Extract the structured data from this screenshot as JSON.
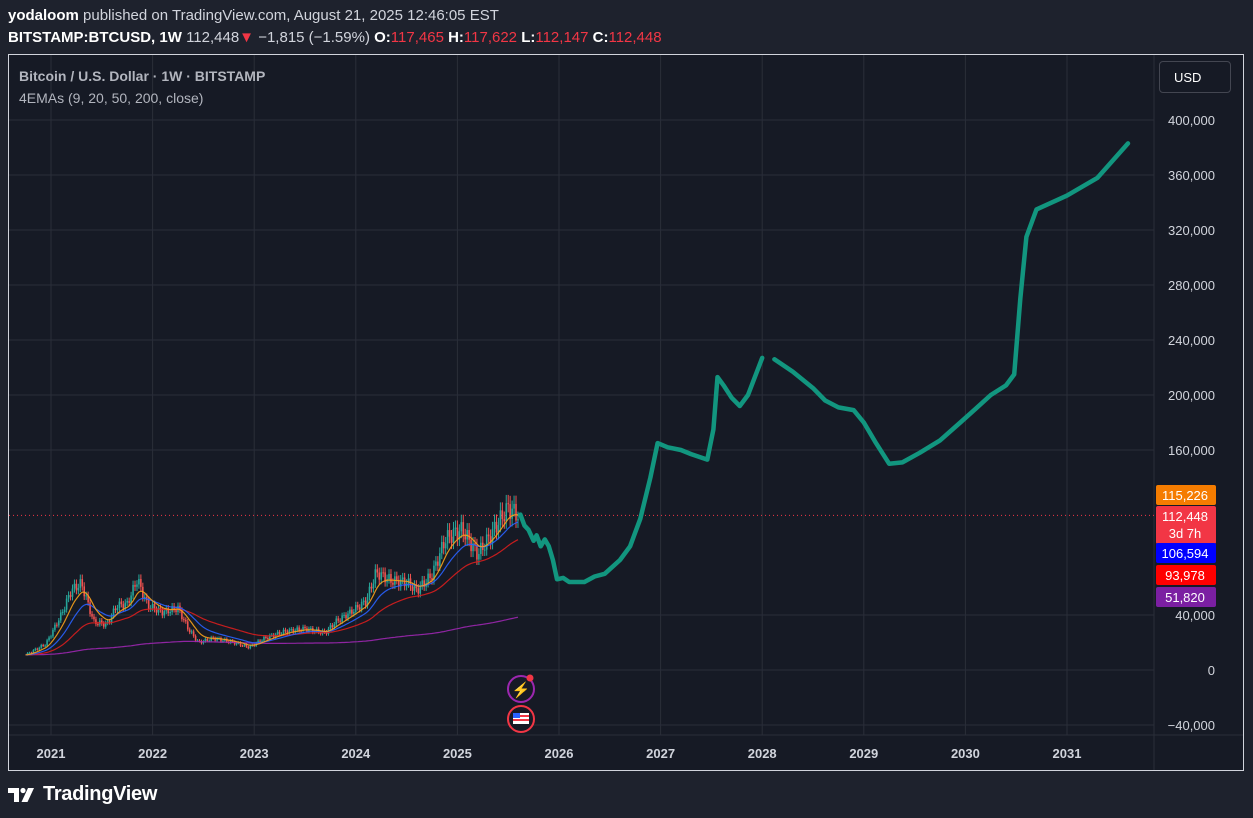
{
  "header": {
    "author": "yodaloom",
    "published_text": "published on TradingView.com, August 21, 2025 12:46:05 EST",
    "symbol": "BITSTAMP:BTCUSD, 1W",
    "last": "112,448",
    "change_arrow": "▼",
    "change": "−1,815 (−1.59%)",
    "o_label": "O:",
    "o_value": "117,465",
    "h_label": "H:",
    "h_value": "117,622",
    "l_label": "L:",
    "l_value": "112,147",
    "c_label": "C:",
    "c_value": "112,448"
  },
  "chart_header": {
    "title": "Bitcoin / U.S. Dollar · 1W · BITSTAMP",
    "indicator": "4EMAs (9, 20, 50, 200, close)",
    "currency_button": "USD"
  },
  "footer": {
    "brand": "TradingView"
  },
  "colors": {
    "projection": "#12967f",
    "candle_up": "#26a69a",
    "candle_down": "#ef5350",
    "ema9": "#f7a21b",
    "ema20": "#2962ff",
    "ema50": "#d81e1e",
    "ema200": "#9c27b0"
  },
  "chart_data": {
    "type": "line",
    "yaxis": {
      "ticks": [
        -40000,
        0,
        40000,
        160000,
        200000,
        240000,
        280000,
        320000,
        360000,
        400000
      ],
      "range": [
        -60000,
        420000
      ]
    },
    "xaxis": {
      "ticks": [
        "2021",
        "2022",
        "2023",
        "2024",
        "2025",
        "2026",
        "2027",
        "2028",
        "2029",
        "2030",
        "2031"
      ]
    },
    "price_labels": [
      {
        "text": "115,226",
        "value": 115226,
        "color": "#f57c00"
      },
      {
        "text": "112,448",
        "sub": "3d 7h",
        "value": 112448,
        "color": "#f23645"
      },
      {
        "text": "106,594",
        "value": 106594,
        "color": "#0000ff"
      },
      {
        "text": "93,978",
        "value": 93978,
        "color": "#ff0000"
      },
      {
        "text": "51,820",
        "value": 51820,
        "color": "#7b1fa2"
      }
    ],
    "historical_price": [
      [
        2020.75,
        11000
      ],
      [
        2020.95,
        19000
      ],
      [
        2021.1,
        40000
      ],
      [
        2021.2,
        58000
      ],
      [
        2021.3,
        63000
      ],
      [
        2021.42,
        35000
      ],
      [
        2021.55,
        33000
      ],
      [
        2021.65,
        47000
      ],
      [
        2021.75,
        48000
      ],
      [
        2021.85,
        66000
      ],
      [
        2021.95,
        47000
      ],
      [
        2022.1,
        42000
      ],
      [
        2022.25,
        45000
      ],
      [
        2022.35,
        30000
      ],
      [
        2022.45,
        20000
      ],
      [
        2022.6,
        23000
      ],
      [
        2022.8,
        20000
      ],
      [
        2022.95,
        16500
      ],
      [
        2023.1,
        23000
      ],
      [
        2023.3,
        28000
      ],
      [
        2023.5,
        30000
      ],
      [
        2023.7,
        27000
      ],
      [
        2023.8,
        35000
      ],
      [
        2023.95,
        42000
      ],
      [
        2024.1,
        50000
      ],
      [
        2024.2,
        71000
      ],
      [
        2024.35,
        65000
      ],
      [
        2024.5,
        64000
      ],
      [
        2024.6,
        58000
      ],
      [
        2024.75,
        69000
      ],
      [
        2024.88,
        95000
      ],
      [
        2024.98,
        100000
      ],
      [
        2025.05,
        102000
      ],
      [
        2025.2,
        84000
      ],
      [
        2025.3,
        95000
      ],
      [
        2025.4,
        107000
      ],
      [
        2025.5,
        118000
      ],
      [
        2025.6,
        112448
      ]
    ],
    "series": [
      {
        "type": "line",
        "values": [
          [
            2025.62,
            113000
          ],
          [
            2025.66,
            105000
          ],
          [
            2025.7,
            102000
          ],
          [
            2025.75,
            94000
          ],
          [
            2025.78,
            98000
          ],
          [
            2025.82,
            90000
          ],
          [
            2025.86,
            95000
          ],
          [
            2025.9,
            90000
          ],
          [
            2025.94,
            80000
          ],
          [
            2025.98,
            66000
          ],
          [
            2026.04,
            67000
          ],
          [
            2026.1,
            64000
          ],
          [
            2026.25,
            64000
          ],
          [
            2026.35,
            68000
          ],
          [
            2026.45,
            70000
          ],
          [
            2026.6,
            80000
          ],
          [
            2026.7,
            90000
          ],
          [
            2026.8,
            110000
          ],
          [
            2026.9,
            140000
          ],
          [
            2026.97,
            165000
          ],
          [
            2027.07,
            162000
          ],
          [
            2027.2,
            160000
          ],
          [
            2027.3,
            157000
          ],
          [
            2027.46,
            153000
          ],
          [
            2027.52,
            175000
          ],
          [
            2027.56,
            213000
          ],
          [
            2027.62,
            207000
          ],
          [
            2027.7,
            198000
          ],
          [
            2027.78,
            192000
          ],
          [
            2027.86,
            200000
          ],
          [
            2028.0,
            227000
          ],
          [
            2028.12,
            226000
          ],
          [
            2028.3,
            217000
          ],
          [
            2028.5,
            205000
          ],
          [
            2028.62,
            196000
          ],
          [
            2028.75,
            191000
          ],
          [
            2028.9,
            189000
          ],
          [
            2029.0,
            180000
          ],
          [
            2029.12,
            165000
          ],
          [
            2029.25,
            150000
          ],
          [
            2029.38,
            151000
          ],
          [
            2029.55,
            158000
          ],
          [
            2029.75,
            167000
          ],
          [
            2029.95,
            180000
          ],
          [
            2030.1,
            190000
          ],
          [
            2030.25,
            200000
          ],
          [
            2030.4,
            207000
          ],
          [
            2030.48,
            215000
          ],
          [
            2030.54,
            270000
          ],
          [
            2030.6,
            315000
          ],
          [
            2030.7,
            335000
          ],
          [
            2031.0,
            345000
          ],
          [
            2031.3,
            358000
          ],
          [
            2031.6,
            383000
          ]
        ]
      }
    ]
  }
}
